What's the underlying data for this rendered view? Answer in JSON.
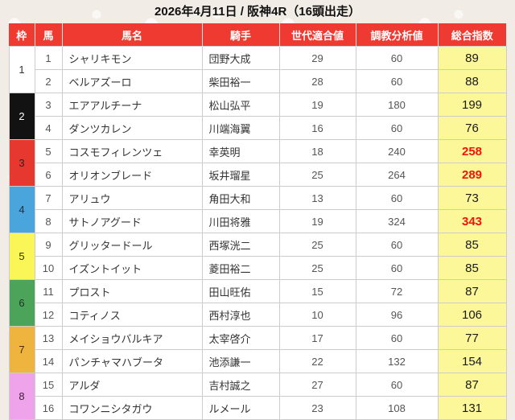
{
  "page": {
    "title": "2026年4月11日 / 阪神4R（16頭出走）"
  },
  "colors": {
    "page_bg": "#f1ede6",
    "header_bg": "#ee3a31",
    "header_text": "#ffffff",
    "grid_line": "#cccccc",
    "total_column_bg": "#fcf799",
    "total_highlight_red": "#f2130a"
  },
  "table": {
    "columns": [
      {
        "key": "waku",
        "label": "枠"
      },
      {
        "key": "uma",
        "label": "馬"
      },
      {
        "key": "name",
        "label": "馬名"
      },
      {
        "key": "jockey",
        "label": "騎手"
      },
      {
        "key": "generation_fit",
        "label": "世代適合値"
      },
      {
        "key": "training_analysis",
        "label": "調教分析値"
      },
      {
        "key": "total_index",
        "label": "総合指数"
      }
    ],
    "frames": [
      {
        "number": "1",
        "color": "#ffffff",
        "text_color": "#333333"
      },
      {
        "number": "2",
        "color": "#121212",
        "text_color": "#ffffff"
      },
      {
        "number": "3",
        "color": "#e7382f",
        "text_color": "#33201e"
      },
      {
        "number": "4",
        "color": "#4ba5dd",
        "text_color": "#203040"
      },
      {
        "number": "5",
        "color": "#fbf657",
        "text_color": "#333300"
      },
      {
        "number": "6",
        "color": "#4ca45a",
        "text_color": "#1c3320"
      },
      {
        "number": "7",
        "color": "#eeb43e",
        "text_color": "#40300c"
      },
      {
        "number": "8",
        "color": "#efa3ea",
        "text_color": "#40203d"
      }
    ],
    "horses": [
      {
        "number": "1",
        "name": "シャリキモン",
        "jockey": "団野大成",
        "generation_fit": "29",
        "training_analysis": "60",
        "total_index": "89",
        "total_red": false
      },
      {
        "number": "2",
        "name": "ベルアズーロ",
        "jockey": "柴田裕一",
        "generation_fit": "28",
        "training_analysis": "60",
        "total_index": "88",
        "total_red": false
      },
      {
        "number": "3",
        "name": "エアアルチーナ",
        "jockey": "松山弘平",
        "generation_fit": "19",
        "training_analysis": "180",
        "total_index": "199",
        "total_red": false
      },
      {
        "number": "4",
        "name": "ダンツカレン",
        "jockey": "川端海翼",
        "generation_fit": "16",
        "training_analysis": "60",
        "total_index": "76",
        "total_red": false
      },
      {
        "number": "5",
        "name": "コスモフィレンツェ",
        "jockey": "幸英明",
        "generation_fit": "18",
        "training_analysis": "240",
        "total_index": "258",
        "total_red": true
      },
      {
        "number": "6",
        "name": "オリオンブレード",
        "jockey": "坂井瑠星",
        "generation_fit": "25",
        "training_analysis": "264",
        "total_index": "289",
        "total_red": true
      },
      {
        "number": "7",
        "name": "アリュウ",
        "jockey": "角田大和",
        "generation_fit": "13",
        "training_analysis": "60",
        "total_index": "73",
        "total_red": false
      },
      {
        "number": "8",
        "name": "サトノアグード",
        "jockey": "川田将雅",
        "generation_fit": "19",
        "training_analysis": "324",
        "total_index": "343",
        "total_red": true
      },
      {
        "number": "9",
        "name": "グリッタードール",
        "jockey": "西塚洸二",
        "generation_fit": "25",
        "training_analysis": "60",
        "total_index": "85",
        "total_red": false
      },
      {
        "number": "10",
        "name": "イズントイット",
        "jockey": "菱田裕二",
        "generation_fit": "25",
        "training_analysis": "60",
        "total_index": "85",
        "total_red": false
      },
      {
        "number": "11",
        "name": "プロスト",
        "jockey": "田山旺佑",
        "generation_fit": "15",
        "training_analysis": "72",
        "total_index": "87",
        "total_red": false
      },
      {
        "number": "12",
        "name": "コティノス",
        "jockey": "西村淳也",
        "generation_fit": "10",
        "training_analysis": "96",
        "total_index": "106",
        "total_red": false
      },
      {
        "number": "13",
        "name": "メイショウバルキア",
        "jockey": "太宰啓介",
        "generation_fit": "17",
        "training_analysis": "60",
        "total_index": "77",
        "total_red": false
      },
      {
        "number": "14",
        "name": "パンチャマハブータ",
        "jockey": "池添謙一",
        "generation_fit": "22",
        "training_analysis": "132",
        "total_index": "154",
        "total_red": false
      },
      {
        "number": "15",
        "name": "アルダ",
        "jockey": "吉村誠之",
        "generation_fit": "27",
        "training_analysis": "60",
        "total_index": "87",
        "total_red": false
      },
      {
        "number": "16",
        "name": "コワンニシタガウ",
        "jockey": "ルメール",
        "generation_fit": "23",
        "training_analysis": "108",
        "total_index": "131",
        "total_red": false
      }
    ]
  }
}
